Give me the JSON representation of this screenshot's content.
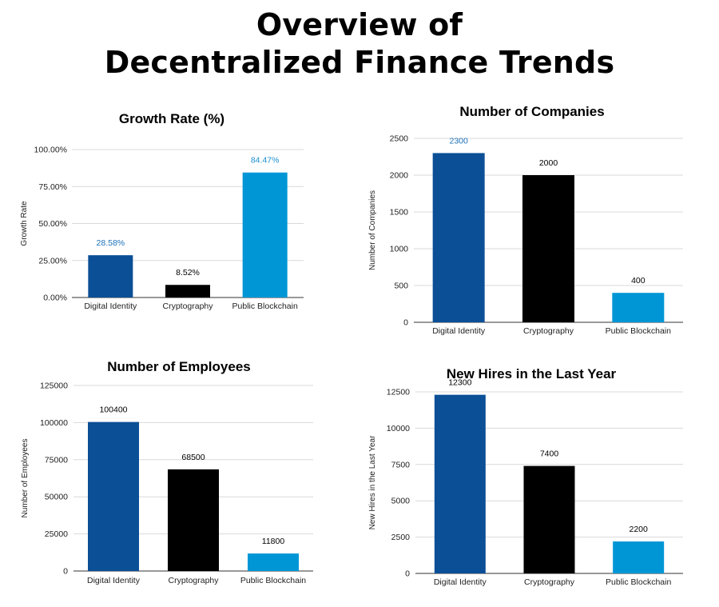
{
  "page": {
    "title_line1": "Overview of",
    "title_line2": "Decentralized Finance Trends"
  },
  "chart_data": [
    {
      "type": "bar",
      "title": "Growth Rate (%)",
      "xlabel": "",
      "ylabel": "Growth Rate",
      "categories": [
        "Digital Identity",
        "Cryptography",
        "Public Blockchain"
      ],
      "values": [
        28.58,
        8.52,
        84.47
      ],
      "data_labels": [
        "28.58%",
        "8.52%",
        "84.47%"
      ],
      "ylim": [
        0,
        100
      ],
      "yticks": [
        0,
        25,
        50,
        75,
        100
      ],
      "ytick_labels": [
        "0.00%",
        "25.00%",
        "50.00%",
        "75.00%",
        "100.00%"
      ],
      "colors": [
        "#0b4f96",
        "#000000",
        "#0096d6"
      ],
      "label_colors": [
        "#1b6fb8",
        "#000000",
        "#1b8fd0"
      ],
      "grid": true
    },
    {
      "type": "bar",
      "title": "Number of Companies",
      "xlabel": "",
      "ylabel": "Number of Companies",
      "categories": [
        "Digital Identity",
        "Cryptography",
        "Public Blockchain"
      ],
      "values": [
        2300,
        2000,
        400
      ],
      "data_labels": [
        "2300",
        "2000",
        "400"
      ],
      "ylim": [
        0,
        2500
      ],
      "yticks": [
        0,
        500,
        1000,
        1500,
        2000,
        2500
      ],
      "ytick_labels": [
        "0",
        "500",
        "1000",
        "1500",
        "2000",
        "2500"
      ],
      "colors": [
        "#0b4f96",
        "#000000",
        "#0096d6"
      ],
      "label_colors": [
        "#1b6fb8",
        "#000000",
        "#000000"
      ],
      "grid": true
    },
    {
      "type": "bar",
      "title": "Number of Employees",
      "xlabel": "",
      "ylabel": "Number of Employees",
      "categories": [
        "Digital Identity",
        "Cryptography",
        "Public Blockchain"
      ],
      "values": [
        100400,
        68500,
        11800
      ],
      "data_labels": [
        "100400",
        "68500",
        "11800"
      ],
      "ylim": [
        0,
        125000
      ],
      "yticks": [
        0,
        25000,
        50000,
        75000,
        100000,
        125000
      ],
      "ytick_labels": [
        "0",
        "25000",
        "50000",
        "75000",
        "100000",
        "125000"
      ],
      "colors": [
        "#0b4f96",
        "#000000",
        "#0096d6"
      ],
      "label_colors": [
        "#000000",
        "#000000",
        "#000000"
      ],
      "grid": true
    },
    {
      "type": "bar",
      "title": "New Hires in the Last Year",
      "xlabel": "",
      "ylabel": "New Hires in the Last Year",
      "categories": [
        "Digital Identity",
        "Cryptography",
        "Public Blockchain"
      ],
      "values": [
        12300,
        7400,
        2200
      ],
      "data_labels": [
        "12300",
        "7400",
        "2200"
      ],
      "ylim": [
        0,
        12500
      ],
      "yticks": [
        0,
        2500,
        5000,
        7500,
        10000,
        12500
      ],
      "ytick_labels": [
        "0",
        "2500",
        "5000",
        "7500",
        "10000",
        "12500"
      ],
      "colors": [
        "#0b4f96",
        "#000000",
        "#0096d6"
      ],
      "label_colors": [
        "#000000",
        "#000000",
        "#000000"
      ],
      "grid": true
    }
  ]
}
